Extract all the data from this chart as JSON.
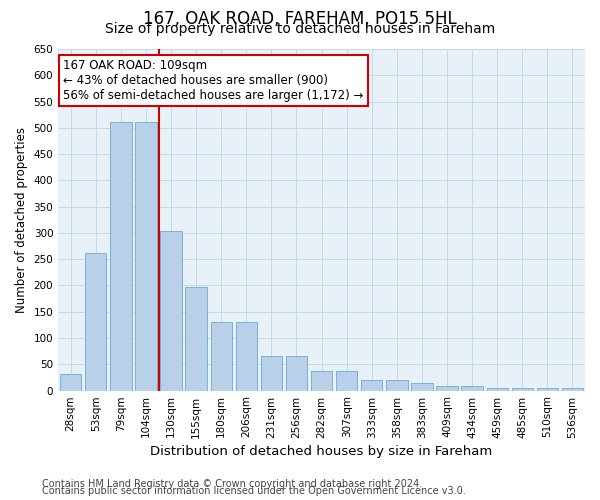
{
  "title1": "167, OAK ROAD, FAREHAM, PO15 5HL",
  "title2": "Size of property relative to detached houses in Fareham",
  "xlabel": "Distribution of detached houses by size in Fareham",
  "ylabel": "Number of detached properties",
  "categories": [
    "28sqm",
    "53sqm",
    "79sqm",
    "104sqm",
    "130sqm",
    "155sqm",
    "180sqm",
    "206sqm",
    "231sqm",
    "256sqm",
    "282sqm",
    "307sqm",
    "333sqm",
    "358sqm",
    "383sqm",
    "409sqm",
    "434sqm",
    "459sqm",
    "485sqm",
    "510sqm",
    "536sqm"
  ],
  "values": [
    31,
    262,
    512,
    511,
    303,
    197,
    131,
    130,
    65,
    65,
    38,
    38,
    21,
    21,
    15,
    8,
    8,
    5,
    5,
    5,
    5
  ],
  "bar_color": "#b8d0e8",
  "bar_edgecolor": "#6aaad4",
  "vline_color": "#cc0000",
  "vline_x": 3.5,
  "annotation_line1": "167 OAK ROAD: 109sqm",
  "annotation_line2": "← 43% of detached houses are smaller (900)",
  "annotation_line3": "56% of semi-detached houses are larger (1,172) →",
  "annotation_box_facecolor": "#ffffff",
  "annotation_box_edgecolor": "#cc0000",
  "ylim": [
    0,
    650
  ],
  "yticks": [
    0,
    50,
    100,
    150,
    200,
    250,
    300,
    350,
    400,
    450,
    500,
    550,
    600,
    650
  ],
  "grid_color": "#c8d8e8",
  "bg_color": "#e8f0f8",
  "footer1": "Contains HM Land Registry data © Crown copyright and database right 2024.",
  "footer2": "Contains public sector information licensed under the Open Government Licence v3.0.",
  "title1_fontsize": 12,
  "title2_fontsize": 10,
  "xlabel_fontsize": 9.5,
  "ylabel_fontsize": 8.5,
  "tick_fontsize": 7.5,
  "annotation_fontsize": 8.5,
  "footer_fontsize": 7
}
